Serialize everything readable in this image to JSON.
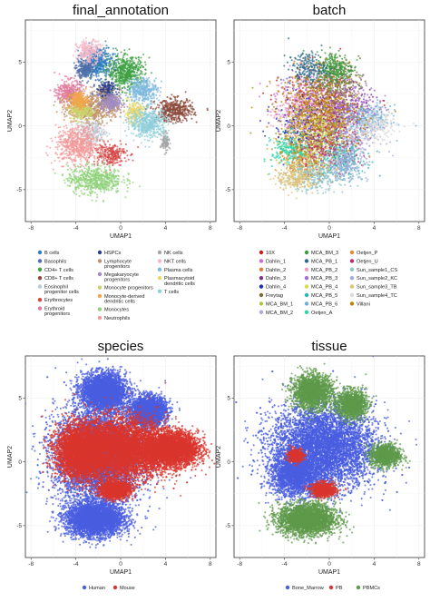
{
  "chart_data": [
    {
      "type": "scatter",
      "title": "final_annotation",
      "xlabel": "UMAP1",
      "ylabel": "UMAP2",
      "xlim": [
        -8.5,
        8.5
      ],
      "ylim": [
        -7.5,
        8.3
      ],
      "xticks": [
        "-8",
        "-4",
        "0",
        "4",
        "8"
      ],
      "yticks": [
        "5",
        "0",
        "-5"
      ],
      "grid": true,
      "legend_position": "bottom",
      "series": [
        {
          "name": "B cells",
          "color": "#2e7dc0",
          "blobs": [
            [
              -2.0,
              5.0,
              1.2,
              1.0,
              1
            ]
          ]
        },
        {
          "name": "Basophils",
          "color": "#4d6fa8",
          "blobs": [
            [
              -3.2,
              4.4,
              0.7,
              0.7,
              0.6
            ]
          ]
        },
        {
          "name": "CD4+ T cells",
          "color": "#3ea043",
          "blobs": [
            [
              0.5,
              4.2,
              1.5,
              1.2,
              1.3
            ]
          ]
        },
        {
          "name": "CD8+ T cells",
          "color": "#8c4a3a",
          "blobs": [
            [
              4.8,
              1.2,
              1.5,
              0.8,
              1
            ]
          ]
        },
        {
          "name": "Eosinophil progenitor cells",
          "color": "#b8c9d6",
          "blobs": [
            [
              -2.5,
              -0.5,
              1.1,
              0.9,
              0.5
            ]
          ]
        },
        {
          "name": "Erythrocytes",
          "color": "#d64545",
          "blobs": [
            [
              -1.0,
              -2.2,
              1.4,
              0.8,
              0.6
            ]
          ]
        },
        {
          "name": "Erythroid progenitors",
          "color": "#e07ba0",
          "blobs": [
            [
              -4.6,
              2.6,
              1.0,
              0.9,
              0.8
            ]
          ]
        },
        {
          "name": "HSPCs",
          "color": "#2b3f8c",
          "blobs": [
            [
              -1.3,
              2.7,
              0.8,
              0.7,
              0.6
            ]
          ]
        },
        {
          "name": "Lymphocyte progenitors",
          "color": "#c0906a",
          "blobs": [
            [
              -2.4,
              1.5,
              2.2,
              1.1,
              1.4
            ]
          ]
        },
        {
          "name": "Megakaryocyte progenitors",
          "color": "#9f8bc2",
          "blobs": [
            [
              -0.9,
              1.8,
              0.8,
              0.6,
              0.5
            ]
          ]
        },
        {
          "name": "Monocyte progenitors",
          "color": "#c9d36b",
          "blobs": [
            [
              -3.5,
              1.2,
              1.0,
              0.7,
              0.6
            ]
          ]
        },
        {
          "name": "Monocyte-derived dendritic cells",
          "color": "#f2a64a",
          "blobs": [
            [
              -3.8,
              2.0,
              0.8,
              0.6,
              0.5
            ]
          ]
        },
        {
          "name": "Monocytes",
          "color": "#8fd17a",
          "blobs": [
            [
              -2.3,
              -4.2,
              2.2,
              1.0,
              1.4
            ]
          ]
        },
        {
          "name": "Neutrophils",
          "color": "#f29999",
          "blobs": [
            [
              -3.8,
              -1.5,
              1.8,
              1.3,
              1.5
            ]
          ]
        },
        {
          "name": "NK cells",
          "color": "#a5a5a5",
          "blobs": [
            [
              4.0,
              -1.3,
              0.3,
              0.6,
              0.3
            ]
          ]
        },
        {
          "name": "NKT cells",
          "color": "#f2b6c6",
          "blobs": [
            [
              -2.8,
              5.8,
              1.0,
              0.8,
              0.6
            ]
          ]
        },
        {
          "name": "Plasma cells",
          "color": "#7db8e0",
          "blobs": [
            [
              2.0,
              2.8,
              1.2,
              0.9,
              0.8
            ]
          ]
        },
        {
          "name": "Plasmacytoid dendritic cells",
          "color": "#e9d76b",
          "blobs": [
            [
              1.2,
              1.0,
              0.8,
              0.7,
              0.5
            ]
          ]
        },
        {
          "name": "T cells",
          "color": "#8fcfd9",
          "blobs": [
            [
              2.5,
              0.2,
              1.5,
              1.0,
              1.2
            ]
          ]
        }
      ]
    },
    {
      "type": "scatter",
      "title": "batch",
      "xlabel": "UMAP1",
      "ylabel": "UMAP2",
      "xlim": [
        -8.5,
        8.5
      ],
      "ylim": [
        -7.5,
        8.3
      ],
      "xticks": [
        "-8",
        "-4",
        "0",
        "4",
        "8"
      ],
      "yticks": [
        "5",
        "0",
        "-5"
      ],
      "grid": true,
      "legend_position": "bottom",
      "series": [
        {
          "name": "10X",
          "color": "#c11f1f",
          "blobs": [
            [
              -1.0,
              1.5,
              3.0,
              2.5,
              0.8
            ]
          ]
        },
        {
          "name": "Dahlin_1",
          "color": "#c86fd6",
          "blobs": [
            [
              -2.0,
              2.0,
              2.5,
              2.0,
              0.8
            ]
          ]
        },
        {
          "name": "Dahlin_2",
          "color": "#e07d3a",
          "blobs": [
            [
              0.0,
              0.5,
              2.5,
              2.2,
              0.8
            ]
          ]
        },
        {
          "name": "Dahlin_3",
          "color": "#7d2f8c",
          "blobs": [
            [
              1.0,
              1.0,
              2.5,
              2.0,
              0.8
            ]
          ]
        },
        {
          "name": "Dahlin_4",
          "color": "#1f2fa8",
          "blobs": [
            [
              -2.5,
              0.0,
              2.2,
              2.0,
              0.8
            ]
          ]
        },
        {
          "name": "Freytag",
          "color": "#7a6a3a",
          "blobs": [
            [
              0.5,
              3.5,
              2.0,
              1.5,
              0.8
            ]
          ]
        },
        {
          "name": "MCA_BM_1",
          "color": "#b4c24a",
          "blobs": [
            [
              -1.5,
              -2.0,
              2.5,
              1.8,
              0.8
            ]
          ]
        },
        {
          "name": "MCA_BM_2",
          "color": "#b0a8d8",
          "blobs": [
            [
              1.5,
              -1.0,
              2.5,
              1.8,
              0.8
            ]
          ]
        },
        {
          "name": "MCA_BM_3",
          "color": "#3d9a3d",
          "blobs": [
            [
              0.5,
              4.5,
              1.5,
              1.2,
              0.8
            ]
          ]
        },
        {
          "name": "MCA_PB_1",
          "color": "#2e6a8f",
          "blobs": [
            [
              -2.0,
              4.5,
              1.5,
              1.2,
              0.6
            ]
          ]
        },
        {
          "name": "MCA_PB_2",
          "color": "#f29cc0",
          "blobs": [
            [
              -3.0,
              1.0,
              2.0,
              2.0,
              0.7
            ]
          ]
        },
        {
          "name": "MCA_PB_3",
          "color": "#a46ad6",
          "blobs": [
            [
              2.0,
              1.5,
              2.2,
              1.8,
              0.7
            ]
          ]
        },
        {
          "name": "MCA_PB_4",
          "color": "#d4e04a",
          "blobs": [
            [
              -1.0,
              0.0,
              2.5,
              2.0,
              0.7
            ]
          ]
        },
        {
          "name": "MCA_PB_5",
          "color": "#2bb5b5",
          "blobs": [
            [
              1.0,
              -2.5,
              2.0,
              1.5,
              0.7
            ]
          ]
        },
        {
          "name": "MCA_PB_6",
          "color": "#6ab0d9",
          "blobs": [
            [
              3.5,
              0.5,
              1.8,
              1.0,
              0.7
            ]
          ]
        },
        {
          "name": "Oetjen_A",
          "color": "#2ed6a6",
          "blobs": [
            [
              -3.5,
              -2.0,
              1.5,
              1.2,
              0.6
            ]
          ]
        },
        {
          "name": "Oetjen_P",
          "color": "#e68a2e",
          "blobs": [
            [
              -2.0,
              -3.0,
              2.0,
              1.2,
              0.6
            ]
          ]
        },
        {
          "name": "Oetjen_U",
          "color": "#b82e6e",
          "blobs": [
            [
              0.0,
              -1.5,
              2.5,
              1.8,
              0.6
            ]
          ]
        },
        {
          "name": "Sun_sample1_CS",
          "color": "#8fc6c6",
          "blobs": [
            [
              -1.5,
              -4.0,
              2.2,
              1.0,
              0.8
            ]
          ]
        },
        {
          "name": "Sun_sample2_KC",
          "color": "#9bb0d9",
          "blobs": [
            [
              1.5,
              -3.0,
              1.8,
              1.2,
              0.7
            ]
          ]
        },
        {
          "name": "Sun_sample3_TB",
          "color": "#e0c37a",
          "blobs": [
            [
              -3.0,
              -4.2,
              1.5,
              0.8,
              0.6
            ]
          ]
        },
        {
          "name": "Sun_sample4_TC",
          "color": "#d9d9d9",
          "blobs": [
            [
              4.0,
              0.0,
              1.8,
              1.0,
              0.7
            ]
          ]
        },
        {
          "name": "Villani",
          "color": "#b8860b",
          "blobs": [
            [
              -1.0,
              1.0,
              3.5,
              3.0,
              1.6
            ]
          ]
        }
      ]
    },
    {
      "type": "scatter",
      "title": "species",
      "xlabel": "UMAP1",
      "ylabel": "UMAP2",
      "xlim": [
        -8.5,
        8.5
      ],
      "ylim": [
        -7.5,
        8.3
      ],
      "xticks": [
        "-8",
        "-4",
        "0",
        "4",
        "8"
      ],
      "yticks": [
        "5",
        "0",
        "-5"
      ],
      "grid": true,
      "legend_position": "bottom",
      "series": [
        {
          "name": "Human",
          "color": "#4a5ee0",
          "blobs": [
            [
              -2.0,
              0.5,
              3.5,
              3.5,
              1.6
            ],
            [
              -2.3,
              -4.5,
              2.3,
              1.2,
              1
            ],
            [
              -1.5,
              5.5,
              1.8,
              1.3,
              0.9
            ],
            [
              2.5,
              4.0,
              1.4,
              1.0,
              0.7
            ]
          ]
        },
        {
          "name": "Mouse",
          "color": "#d9352e",
          "blobs": [
            [
              0.0,
              1.0,
              3.8,
              2.2,
              1.7
            ],
            [
              -3.5,
              0.8,
              2.0,
              1.8,
              1
            ],
            [
              4.5,
              1.0,
              2.2,
              1.2,
              1
            ],
            [
              -0.5,
              -2.2,
              1.2,
              0.6,
              0.4
            ]
          ]
        }
      ]
    },
    {
      "type": "scatter",
      "title": "tissue",
      "xlabel": "UMAP1",
      "ylabel": "UMAP2",
      "xlim": [
        -8.5,
        8.5
      ],
      "ylim": [
        -7.5,
        8.3
      ],
      "xticks": [
        "-8",
        "-4",
        "0",
        "4",
        "8"
      ],
      "yticks": [
        "5",
        "0",
        "-5"
      ],
      "grid": true,
      "legend_position": "bottom",
      "series": [
        {
          "name": "Bone_Marrow",
          "color": "#4a5ee0",
          "blobs": [
            [
              -0.5,
              1.2,
              4.2,
              3.0,
              2.5
            ],
            [
              -3.0,
              -1.0,
              2.0,
              1.5,
              0.8
            ]
          ]
        },
        {
          "name": "PB",
          "color": "#d9352e",
          "blobs": [
            [
              -0.5,
              -2.2,
              1.0,
              0.5,
              0.3
            ],
            [
              -3.0,
              0.5,
              0.6,
              0.5,
              0.15
            ]
          ]
        },
        {
          "name": "PBMCs",
          "color": "#5e9a4a",
          "blobs": [
            [
              -2.0,
              -4.5,
              2.3,
              1.1,
              1.1
            ],
            [
              -1.5,
              5.5,
              1.6,
              1.2,
              0.7
            ],
            [
              2.0,
              4.5,
              1.2,
              1.0,
              0.5
            ],
            [
              5.0,
              0.5,
              1.2,
              0.8,
              0.4
            ]
          ]
        }
      ]
    }
  ]
}
